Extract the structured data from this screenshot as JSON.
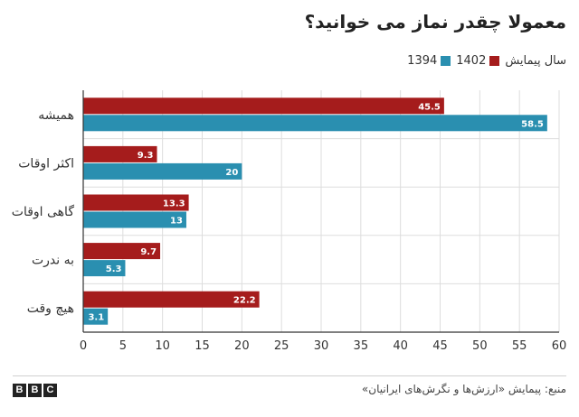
{
  "logo": {
    "letters": [
      "B",
      "B",
      "C"
    ]
  },
  "source": "منبع: پیمایش «ارزش‌ها و نگرش‌های ایرانیان»",
  "colors": {
    "series_1402": "#a51c1c",
    "series_1394": "#2a8fb0",
    "grid": "#dddddd",
    "axis": "#333333"
  },
  "chart_data": {
    "type": "bar",
    "orientation": "horizontal",
    "title": "معمولا چقدر نماز می خوانید؟",
    "legend_title": "سال پیمایش",
    "legend_position": "top-right",
    "categories": [
      "همیشه",
      "اکثر اوقات",
      "گاهی اوقات",
      "به ندرت",
      "هیچ وقت"
    ],
    "series": [
      {
        "name": "1402",
        "color": "#a51c1c",
        "values": [
          45.5,
          9.3,
          13.3,
          9.7,
          22.2
        ]
      },
      {
        "name": "1394",
        "color": "#2a8fb0",
        "values": [
          58.5,
          20,
          13,
          5.3,
          3.1
        ]
      }
    ],
    "xlim": [
      0,
      60
    ],
    "xticks": [
      0,
      5,
      10,
      15,
      20,
      25,
      30,
      35,
      40,
      45,
      50,
      55,
      60
    ],
    "grid": true,
    "data_labels": true
  }
}
